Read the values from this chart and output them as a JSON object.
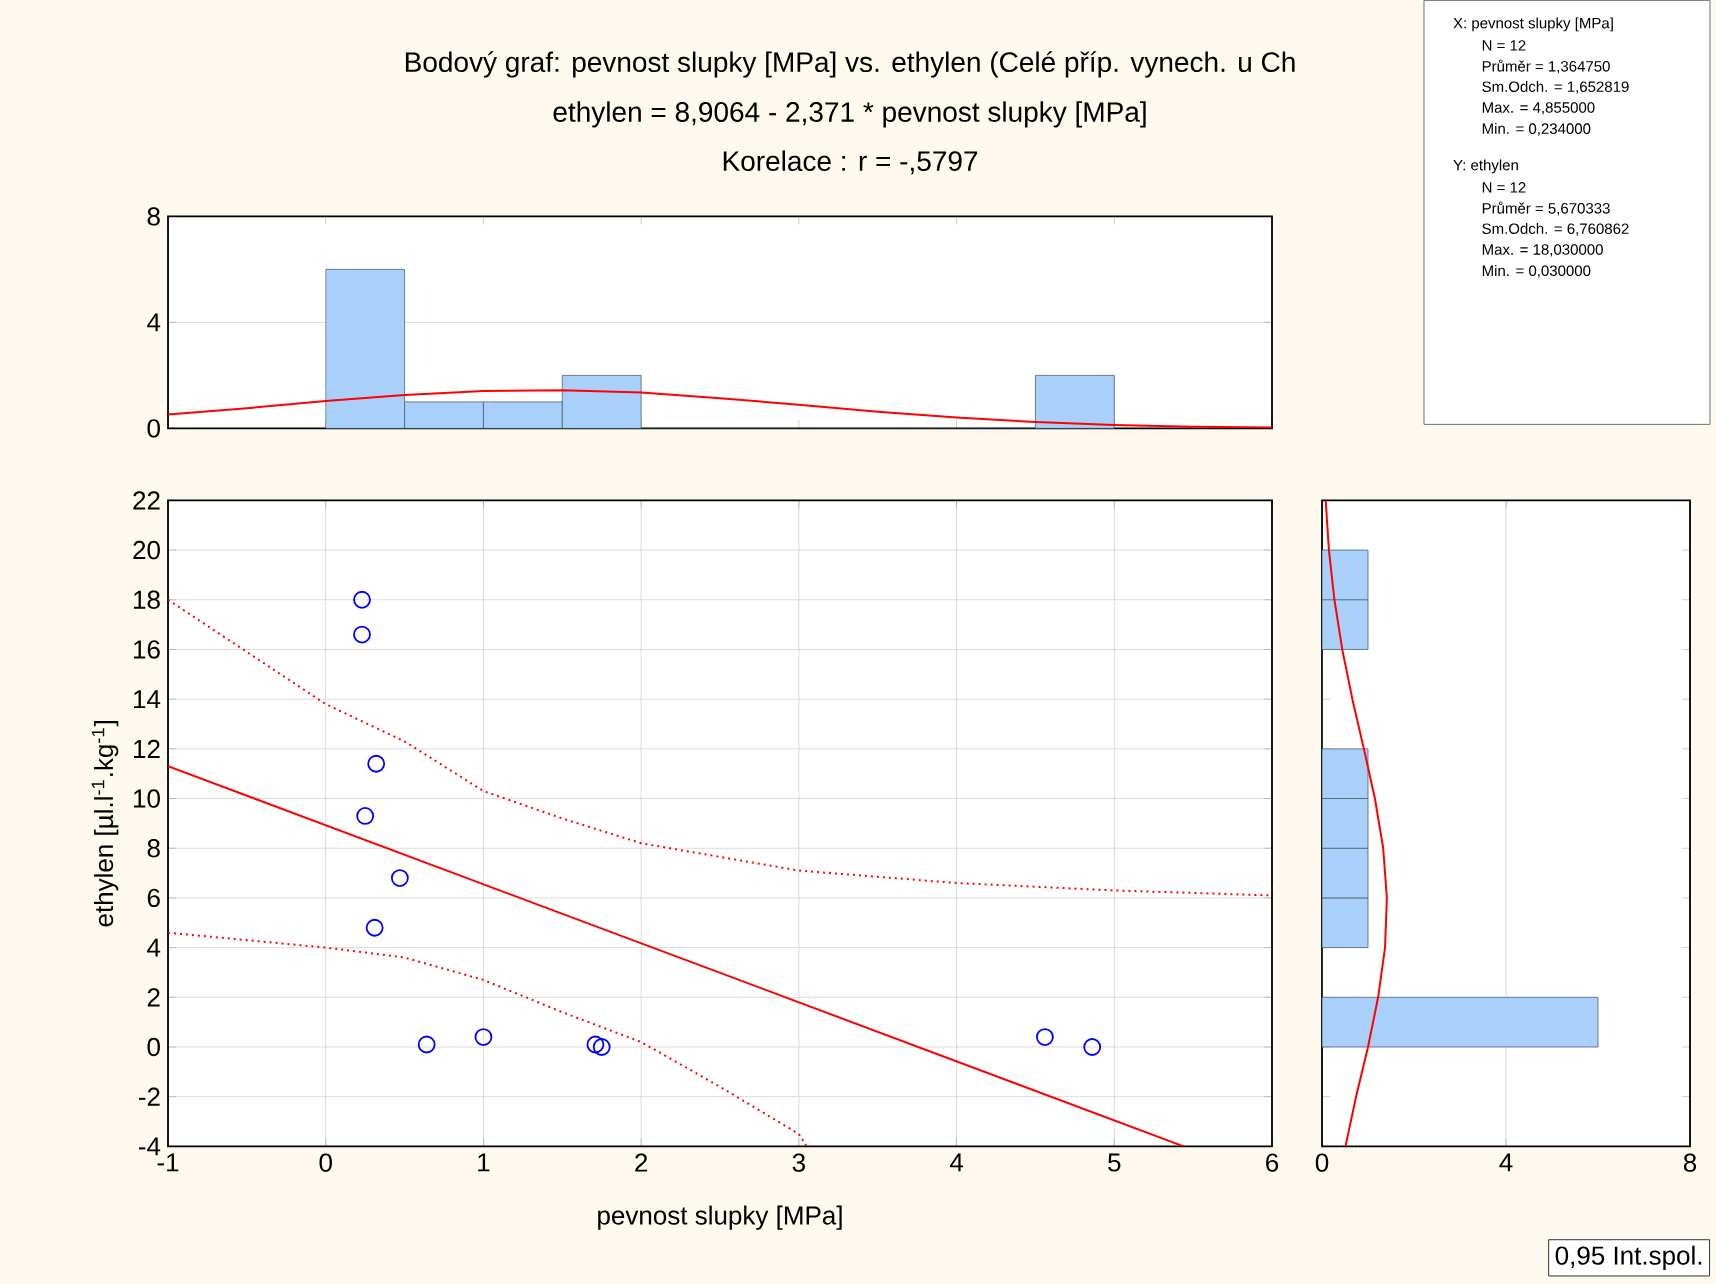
{
  "chart_data": [
    {
      "type": "histogram",
      "title": "Bodový graf: pevnost slupky [MPa] vs. ethylen  (Celé příp. vynech. u Ch",
      "subtitle": "ethylen  = 8,9064 - 2,371  * pevnost slupky [MPa]",
      "annotations": [
        "Korelace :   r = -,5797"
      ],
      "xlim": [
        -1,
        6
      ],
      "xticks": [
        {
          "value": -1,
          "label": null
        },
        {
          "value": 0,
          "label": null
        },
        {
          "value": 1,
          "label": null
        },
        {
          "value": 2,
          "label": null
        },
        {
          "value": 3,
          "label": null
        },
        {
          "value": 4,
          "label": null
        },
        {
          "value": 5,
          "label": null
        },
        {
          "value": 6,
          "label": null
        }
      ],
      "ylim": [
        0,
        8
      ],
      "yticks": [
        0,
        4,
        8
      ],
      "tick_labels": "y",
      "grid": "y",
      "series": [
        {
          "type": "histogram",
          "color": "#a8d0fa",
          "bins": [
            0,
            0.5,
            1,
            1.5,
            2,
            2.5,
            3,
            3.5,
            4,
            4.5,
            5
          ],
          "values": [
            6,
            1,
            1,
            2,
            0,
            0,
            0,
            0,
            0,
            2
          ]
        },
        {
          "type": "line",
          "color": "#ff0000",
          "x": [
            -1,
            -0.5,
            0,
            0.5,
            1,
            1.5,
            2,
            2.5,
            3,
            3.5,
            4,
            4.5,
            5,
            5.5,
            6
          ],
          "values": [
            0.52,
            0.76,
            1.03,
            1.26,
            1.41,
            1.44,
            1.35,
            1.14,
            0.89,
            0.63,
            0.41,
            0.24,
            0.13,
            0.06,
            0.03
          ]
        }
      ]
    },
    {
      "type": "scatter",
      "xlabel": "pevnost slupky [MPa]",
      "ylabel": "ethylen [µl.l$^{-1}$.kg$^{-1}$]",
      "annotations": [
        "0,95 Int.spol."
      ],
      "xlim": [
        -1,
        6
      ],
      "xticks": [
        -1,
        0,
        1,
        2,
        3,
        4,
        5,
        6
      ],
      "ylim": [
        -4,
        22
      ],
      "yticks": [
        -4,
        -2,
        0,
        2,
        4,
        6,
        8,
        10,
        12,
        14,
        16,
        18,
        20,
        22
      ],
      "grid": true,
      "series": [
        {
          "type": "scatter",
          "marker": "circle",
          "color": "#0000ff",
          "x": [
            0.23,
            0.23,
            0.32,
            0.25,
            0.47,
            0.31,
            0.64,
            1.0,
            1.71,
            1.75,
            4.56,
            4.86
          ],
          "values": [
            18.0,
            16.6,
            11.4,
            9.3,
            6.8,
            4.8,
            0.1,
            0.4,
            0.1,
            0.0,
            0.4,
            0.0
          ]
        },
        {
          "type": "line",
          "line_style": "solid",
          "color": "#ff0000",
          "x": [
            -1,
            5.44
          ],
          "values": [
            11.3,
            -4
          ]
        },
        {
          "type": "line",
          "line_style": "dotted",
          "color": "#ff0000",
          "x": [
            -1,
            0,
            0.5,
            1,
            1.5,
            2,
            3,
            4,
            5,
            6
          ],
          "values": [
            18.0,
            13.8,
            12.3,
            10.3,
            9.2,
            8.2,
            7.1,
            6.6,
            6.3,
            6.1
          ]
        },
        {
          "type": "line",
          "line_style": "dotted",
          "color": "#ff0000",
          "x": [
            -1,
            0,
            0.5,
            1,
            1.5,
            2,
            2.5,
            3,
            3.05
          ],
          "values": [
            4.6,
            4.0,
            3.6,
            2.7,
            1.4,
            0.2,
            -1.6,
            -3.5,
            -4
          ]
        }
      ]
    },
    {
      "type": "histogram",
      "orientation": "horizontal",
      "xlim": [
        0,
        8
      ],
      "xticks": [
        0,
        4,
        8
      ],
      "ylim": [
        -4,
        22
      ],
      "yticks": [
        {
          "value": -4,
          "label": null
        },
        {
          "value": -2,
          "label": null
        },
        {
          "value": 0,
          "label": null
        },
        {
          "value": 2,
          "label": null
        },
        {
          "value": 4,
          "label": null
        },
        {
          "value": 6,
          "label": null
        },
        {
          "value": 8,
          "label": null
        },
        {
          "value": 10,
          "label": null
        },
        {
          "value": 12,
          "label": null
        },
        {
          "value": 14,
          "label": null
        },
        {
          "value": 16,
          "label": null
        },
        {
          "value": 18,
          "label": null
        },
        {
          "value": 20,
          "label": null
        },
        {
          "value": 22,
          "label": null
        }
      ],
      "tick_labels": "x",
      "grid": "x",
      "series": [
        {
          "type": "histogram",
          "color": "#a8d0fa",
          "bins": [
            0,
            2,
            4,
            6,
            8,
            10,
            12,
            14,
            16,
            18,
            20
          ],
          "values": [
            6,
            0,
            1,
            1,
            1,
            1,
            0,
            0,
            1,
            1
          ]
        },
        {
          "type": "line",
          "color": "#ff0000",
          "x": [
            -4,
            -2,
            0,
            2,
            4,
            6,
            8,
            10,
            12,
            14,
            16,
            18,
            20,
            22
          ],
          "values": [
            0.51,
            0.74,
            1.0,
            1.22,
            1.37,
            1.41,
            1.33,
            1.15,
            0.91,
            0.66,
            0.44,
            0.27,
            0.15,
            0.08
          ]
        }
      ]
    },
    {
      "type": "other",
      "annotations": [
        "X:  pevnost slupky [MPa]",
        "N = 12",
        "Průměr = 1,364750",
        "Sm.Odch. = 1,652819",
        "Max. = 4,855000",
        "Min. = 0,234000",
        "Y:  ethylen",
        "N = 12",
        "Průměr = 5,670333",
        "Sm.Odch. = 6,760862",
        "Max. = 18,030000",
        "Min. = 0,030000"
      ]
    }
  ]
}
